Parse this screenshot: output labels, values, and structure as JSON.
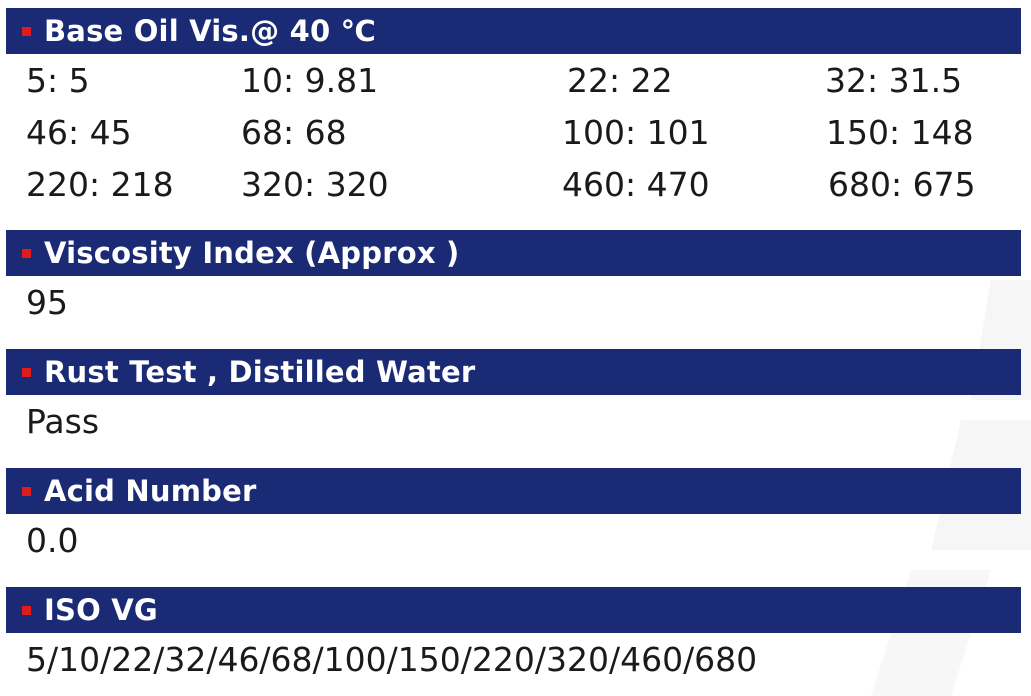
{
  "sections": [
    {
      "title": "Base Oil Vis.@ 40 ℃",
      "grid": [
        [
          "5: 5",
          "10: 9.81",
          "22: 22",
          "32: 31.5"
        ],
        [
          "46: 45",
          "68: 68",
          "100: 101",
          "150: 148"
        ],
        [
          "220: 218",
          "320: 320",
          "460: 470",
          "680: 675"
        ]
      ]
    },
    {
      "title": "Viscosity Index (Approx )",
      "value": "95"
    },
    {
      "title": "Rust Test , Distilled Water",
      "value": "Pass"
    },
    {
      "title": "Acid Number",
      "value": "0.0"
    },
    {
      "title": "ISO VG",
      "value": "5/10/22/32/46/68/100/150/220/320/460/680"
    }
  ],
  "colors": {
    "header_bar": "#1b2a74",
    "bullet": "#e01b1b",
    "header_text": "#ffffff",
    "body_text": "#1a1a1a"
  }
}
